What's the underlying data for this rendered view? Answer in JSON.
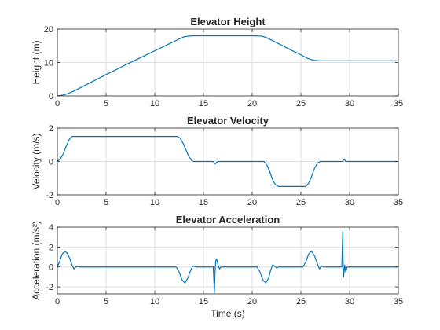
{
  "figure": {
    "background": "#ffffff",
    "line_color": "#0072bd"
  },
  "chart_data": [
    {
      "type": "line",
      "title": "Elevator Height",
      "xlabel": "",
      "ylabel": "Height (m)",
      "xlim": [
        0,
        35
      ],
      "ylim": [
        0,
        20
      ],
      "xticks": [
        0,
        5,
        10,
        15,
        20,
        25,
        30,
        35
      ],
      "yticks": [
        0,
        10,
        20
      ],
      "grid": true,
      "series": [
        {
          "x": [
            0,
            0.5,
            1,
            1.5,
            2,
            3,
            4,
            5,
            6,
            7,
            8,
            9,
            10,
            11,
            12,
            12.5,
            13,
            13.5,
            14,
            15,
            16,
            17,
            18,
            19,
            20,
            21,
            21.5,
            22,
            23,
            24,
            25,
            25.5,
            26,
            26.5,
            27,
            28,
            29,
            30,
            31,
            32,
            33,
            34,
            35
          ],
          "y": [
            0,
            0.2,
            0.6,
            1.2,
            1.9,
            3.4,
            4.9,
            6.4,
            7.8,
            9.3,
            10.7,
            12.1,
            13.5,
            14.9,
            16.3,
            17.0,
            17.7,
            17.9,
            18.0,
            18.0,
            18.0,
            18.0,
            18.0,
            18.0,
            18.0,
            17.9,
            17.4,
            16.7,
            15.2,
            13.7,
            12.3,
            11.5,
            10.9,
            10.6,
            10.5,
            10.5,
            10.5,
            10.5,
            10.5,
            10.5,
            10.5,
            10.5,
            10.5
          ]
        }
      ]
    },
    {
      "type": "line",
      "title": "Elevator Velocity",
      "xlabel": "",
      "ylabel": "Velocity (m/s)",
      "xlim": [
        0,
        35
      ],
      "ylim": [
        -2,
        2
      ],
      "xticks": [
        0,
        5,
        10,
        15,
        20,
        25,
        30,
        35
      ],
      "yticks": [
        -2,
        0,
        2
      ],
      "grid": true,
      "series": [
        {
          "x": [
            0,
            0.3,
            0.6,
            0.9,
            1.2,
            1.5,
            2,
            5,
            10,
            12.3,
            12.6,
            12.9,
            13.2,
            13.5,
            13.8,
            14,
            15,
            16,
            16.2,
            16.35,
            16.5,
            20,
            21.2,
            21.5,
            21.8,
            22.1,
            22.4,
            22.7,
            23,
            25.5,
            25.8,
            26.1,
            26.4,
            26.7,
            27,
            29,
            29.3,
            29.45,
            29.6,
            35
          ],
          "y": [
            0,
            0.15,
            0.45,
            0.9,
            1.3,
            1.5,
            1.5,
            1.5,
            1.5,
            1.5,
            1.4,
            1.1,
            0.7,
            0.3,
            0.05,
            0,
            0,
            0,
            -0.15,
            -0.05,
            0,
            0,
            0,
            -0.2,
            -0.6,
            -1.1,
            -1.4,
            -1.5,
            -1.5,
            -1.5,
            -1.3,
            -0.9,
            -0.4,
            -0.1,
            0,
            0,
            0,
            0.15,
            0,
            0
          ]
        }
      ]
    },
    {
      "type": "line",
      "title": "Elevator Acceleration",
      "xlabel": "Time (s)",
      "ylabel": "Acceleration (m/s²)",
      "xlim": [
        0,
        35
      ],
      "ylim": [
        -2.7,
        4
      ],
      "xticks": [
        0,
        5,
        10,
        15,
        20,
        25,
        30,
        35
      ],
      "yticks": [
        -2,
        0,
        2,
        4
      ],
      "grid": true,
      "series": [
        {
          "x": [
            0,
            0.25,
            0.5,
            0.75,
            1.0,
            1.25,
            1.5,
            1.7,
            1.9,
            2.1,
            2.3,
            5,
            10,
            12.2,
            12.5,
            12.8,
            13.1,
            13.4,
            13.7,
            13.9,
            14.1,
            14.3,
            16.0,
            16.05,
            16.12,
            16.18,
            16.25,
            16.35,
            16.5,
            16.65,
            16.8,
            20.5,
            20.8,
            21.1,
            21.4,
            21.7,
            21.9,
            22.1,
            22.3,
            22.5,
            22.7,
            25.2,
            25.5,
            25.8,
            26.1,
            26.4,
            26.7,
            26.9,
            27.1,
            27.3,
            29.2,
            29.3,
            29.33,
            29.38,
            29.45,
            29.5,
            29.6,
            29.75,
            29.9,
            35
          ],
          "y": [
            0,
            0.6,
            1.3,
            1.55,
            1.4,
            0.9,
            0.2,
            -0.2,
            0,
            0.05,
            0,
            0,
            0,
            0,
            -0.5,
            -1.3,
            -1.6,
            -1.1,
            -0.3,
            0.1,
            0.05,
            0,
            0,
            -0.9,
            -2.6,
            -0.8,
            0.6,
            0.8,
            0.2,
            -0.2,
            0,
            0,
            -0.5,
            -1.3,
            -1.6,
            -1.1,
            -0.3,
            0.2,
            0.1,
            -0.1,
            0,
            0,
            0.5,
            1.3,
            1.6,
            1.1,
            0.3,
            -0.2,
            0.1,
            0,
            0,
            3.6,
            0.5,
            -1.0,
            -0.3,
            0.2,
            -0.5,
            0,
            0,
            0
          ]
        }
      ]
    }
  ]
}
